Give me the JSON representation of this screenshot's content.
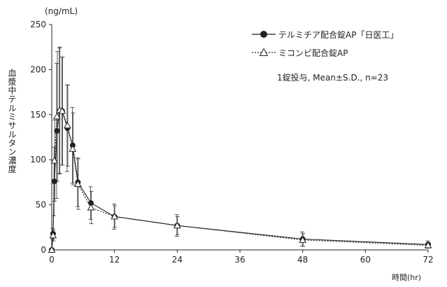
{
  "chart_data": {
    "type": "line",
    "title": "",
    "y_unit": "(ng/mL)",
    "ylabel": "血漿中テルミサルタン濃度",
    "xlabel": "時間(hr)",
    "x_ticks": [
      0,
      12,
      24,
      36,
      48,
      60,
      72
    ],
    "y_ticks": [
      0,
      50,
      100,
      150,
      200,
      250
    ],
    "xlim": [
      0,
      72
    ],
    "ylim": [
      0,
      250
    ],
    "annotation": "1錠投与, Mean±S.D., n=23",
    "legend_position": "top-right",
    "series": [
      {
        "name": "テルミチア配合錠AP「日医工」",
        "marker": "filled-circle",
        "color": "#222222",
        "points": [
          {
            "x": 0,
            "y": 0,
            "sd": 0
          },
          {
            "x": 0.25,
            "y": 18,
            "sd": 6
          },
          {
            "x": 0.5,
            "y": 76,
            "sd": 38
          },
          {
            "x": 1,
            "y": 132,
            "sd": 75
          },
          {
            "x": 1.5,
            "y": 154,
            "sd": 70
          },
          {
            "x": 2,
            "y": 154,
            "sd": 60
          },
          {
            "x": 3,
            "y": 135,
            "sd": 48
          },
          {
            "x": 4,
            "y": 116,
            "sd": 42
          },
          {
            "x": 5,
            "y": 75,
            "sd": 27
          },
          {
            "x": 7.5,
            "y": 52,
            "sd": 18
          },
          {
            "x": 12,
            "y": 37,
            "sd": 14
          },
          {
            "x": 24,
            "y": 27,
            "sd": 12
          },
          {
            "x": 48,
            "y": 12,
            "sd": 8
          },
          {
            "x": 72,
            "y": 6,
            "sd": 4
          }
        ]
      },
      {
        "name": "ミコンビ配合錠AP",
        "marker": "open-triangle",
        "color": "#222222",
        "points": [
          {
            "x": 0,
            "y": 0,
            "sd": 0
          },
          {
            "x": 0.25,
            "y": 16,
            "sd": 6
          },
          {
            "x": 0.5,
            "y": 99,
            "sd": 45
          },
          {
            "x": 1,
            "y": 148,
            "sd": 72
          },
          {
            "x": 1.5,
            "y": 155,
            "sd": 70
          },
          {
            "x": 2,
            "y": 154,
            "sd": 60
          },
          {
            "x": 3,
            "y": 138,
            "sd": 45
          },
          {
            "x": 4,
            "y": 112,
            "sd": 40
          },
          {
            "x": 5,
            "y": 73,
            "sd": 28
          },
          {
            "x": 7.5,
            "y": 47,
            "sd": 18
          },
          {
            "x": 12,
            "y": 37,
            "sd": 12
          },
          {
            "x": 24,
            "y": 27,
            "sd": 10
          },
          {
            "x": 48,
            "y": 11,
            "sd": 7
          },
          {
            "x": 72,
            "y": 5,
            "sd": 3
          }
        ]
      }
    ]
  }
}
